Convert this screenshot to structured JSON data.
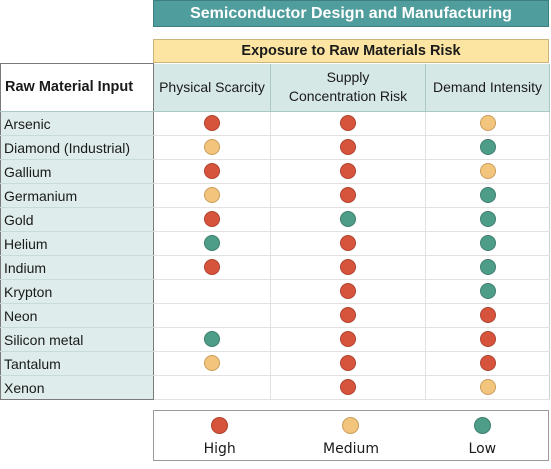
{
  "title": "Semiconductor Design and Manufacturing",
  "subtitle": "Exposure to Raw Materials Risk",
  "columns": {
    "raw_material": "Raw Material Input",
    "physical_scarcity": "Physical Scarcity",
    "supply_concentration_line1": "Supply",
    "supply_concentration_line2": "Concentration Risk",
    "demand_intensity": "Demand Intensity"
  },
  "rows": [
    {
      "name": "Arsenic",
      "physical": "high",
      "supply": "high",
      "demand": "medium"
    },
    {
      "name": "Diamond (Industrial)",
      "physical": "medium",
      "supply": "high",
      "demand": "low"
    },
    {
      "name": "Gallium",
      "physical": "high",
      "supply": "high",
      "demand": "medium"
    },
    {
      "name": "Germanium",
      "physical": "medium",
      "supply": "high",
      "demand": "low"
    },
    {
      "name": "Gold",
      "physical": "high",
      "supply": "low",
      "demand": "low"
    },
    {
      "name": "Helium",
      "physical": "low",
      "supply": "high",
      "demand": "low"
    },
    {
      "name": "Indium",
      "physical": "high",
      "supply": "high",
      "demand": "low"
    },
    {
      "name": "Krypton",
      "physical": "",
      "supply": "high",
      "demand": "low"
    },
    {
      "name": "Neon",
      "physical": "",
      "supply": "high",
      "demand": "high"
    },
    {
      "name": "Silicon metal",
      "physical": "low",
      "supply": "high",
      "demand": "high"
    },
    {
      "name": "Tantalum",
      "physical": "medium",
      "supply": "high",
      "demand": "high"
    },
    {
      "name": "Xenon",
      "physical": "",
      "supply": "high",
      "demand": "medium"
    }
  ],
  "legend": {
    "high": "High",
    "medium": "Medium",
    "low": "Low"
  },
  "colors": {
    "high": "#d6543b",
    "medium": "#f2c47c",
    "low": "#4e9d89",
    "banner": "#4f9d9c",
    "subbanner": "#fce5a3"
  }
}
